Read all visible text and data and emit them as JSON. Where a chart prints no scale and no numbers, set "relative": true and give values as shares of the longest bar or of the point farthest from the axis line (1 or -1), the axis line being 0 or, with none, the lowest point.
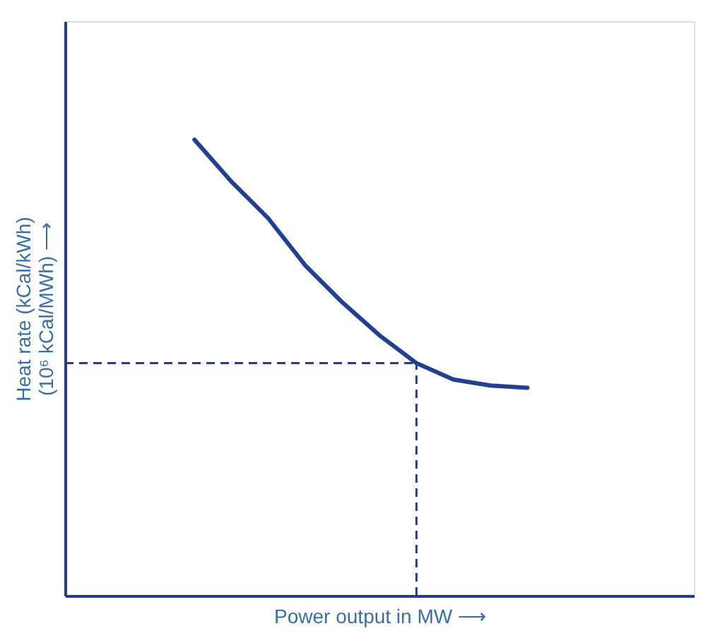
{
  "chart_data": {
    "type": "line",
    "relative": true,
    "xlabel": "Power output in MW ⟶",
    "ylabel": "Heat rate (kCal/kWh)\n(10⁶ kCal/MWh) ⟶",
    "tick_labels": false,
    "grid": false,
    "marker": "none",
    "line_style": "solid",
    "categories": [
      null,
      null,
      null,
      null,
      null,
      null,
      null,
      null,
      null,
      null,
      null,
      null,
      null,
      null,
      null,
      null,
      null
    ],
    "series": [
      {
        "color": "#22408f",
        "values": [
          null,
          null,
          null,
          1,
          0.908,
          0.827,
          0.724,
          0.643,
          0.571,
          0.51,
          0.474,
          0.461,
          0.456,
          null,
          null,
          null,
          null
        ]
      }
    ],
    "ref_lines": [
      {
        "axis": "y",
        "value": 0.51,
        "line_style": "dashed",
        "color": "#22408f"
      }
    ]
  }
}
